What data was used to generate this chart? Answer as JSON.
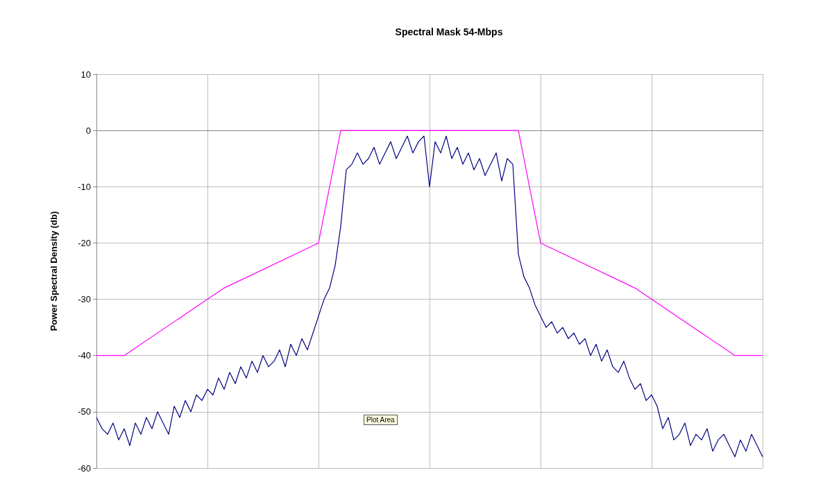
{
  "chart_data": {
    "type": "line",
    "title": "Spectral Mask 54-Mbps",
    "ylabel": "Power Spectral Density (db)",
    "annotations": [
      "Plot Area"
    ],
    "categories": [
      null,
      null,
      null,
      null,
      null,
      null,
      null,
      null,
      null,
      null,
      null,
      null,
      null,
      null,
      null,
      null,
      null,
      null,
      null,
      null,
      null,
      null,
      null,
      null,
      null,
      null,
      null,
      null,
      null,
      null,
      null,
      null,
      null,
      null,
      null,
      null,
      null,
      null,
      null,
      null,
      null,
      null,
      null,
      null,
      null,
      null,
      null,
      null,
      null,
      null,
      null,
      null,
      null,
      null,
      null,
      null,
      null,
      null,
      null,
      null,
      null,
      null,
      null,
      null,
      null,
      null,
      null,
      null,
      null,
      null,
      null,
      null,
      null,
      null,
      null,
      null,
      null,
      null,
      null,
      null,
      null,
      null,
      null,
      null,
      null,
      null,
      null,
      null,
      null,
      null,
      null,
      null,
      null,
      null,
      null,
      null,
      null,
      null,
      null,
      null,
      null,
      null,
      null,
      null,
      null,
      null,
      null,
      null,
      null,
      null,
      null,
      null,
      null,
      null,
      null,
      null,
      null,
      null,
      null,
      null,
      null
    ],
    "ylim": [
      -60,
      10
    ],
    "yticks": [
      -60,
      -50,
      -40,
      -30,
      -20,
      -10,
      0,
      10
    ],
    "tick_labels": "y",
    "grid": true,
    "line_style": "solid",
    "series": [
      {
        "color": "#000080",
        "values": [
          -51,
          -53,
          -54,
          -52,
          -55,
          -53,
          -56,
          -52,
          -54,
          -51,
          -53,
          -50,
          -52,
          -54,
          -49,
          -51,
          -48,
          -50,
          -47,
          -48,
          -46,
          -47,
          -44,
          -46,
          -43,
          -45,
          -42,
          -44,
          -41,
          -43,
          -40,
          -42,
          -41,
          -39,
          -42,
          -38,
          -40,
          -37,
          -39,
          -36,
          -33,
          -30,
          -28,
          -24,
          -17,
          -7,
          -6,
          -4,
          -6,
          -5,
          -3,
          -6,
          -4,
          -2,
          -5,
          -3,
          -1,
          -4,
          -2,
          -1,
          -10,
          -2,
          -4,
          -1,
          -5,
          -3,
          -6,
          -4,
          -7,
          -5,
          -8,
          -6,
          -4,
          -9,
          -5,
          -6,
          -22,
          -26,
          -28,
          -31,
          -33,
          -35,
          -34,
          -36,
          -35,
          -37,
          -36,
          -38,
          -37,
          -40,
          -38,
          -41,
          -39,
          -42,
          -43,
          -41,
          -44,
          -46,
          -45,
          -48,
          -47,
          -49,
          -53,
          -51,
          -55,
          -54,
          -52,
          -56,
          -54,
          -55,
          -53,
          -57,
          -55,
          -54,
          -56,
          -58,
          -55,
          -57,
          -54,
          -56,
          -58
        ]
      },
      {
        "color": "#ff00ff",
        "values": [
          -40,
          null,
          null,
          null,
          null,
          -40,
          null,
          null,
          null,
          null,
          null,
          null,
          null,
          null,
          null,
          null,
          null,
          null,
          null,
          null,
          null,
          null,
          null,
          -28,
          null,
          null,
          null,
          null,
          null,
          null,
          null,
          null,
          null,
          null,
          null,
          null,
          null,
          null,
          null,
          null,
          -20,
          null,
          null,
          null,
          0,
          null,
          null,
          null,
          null,
          null,
          null,
          null,
          null,
          null,
          null,
          null,
          null,
          null,
          null,
          null,
          null,
          null,
          null,
          null,
          null,
          null,
          null,
          null,
          null,
          null,
          null,
          null,
          null,
          null,
          null,
          null,
          0,
          null,
          null,
          null,
          -20,
          null,
          null,
          null,
          null,
          null,
          null,
          null,
          null,
          null,
          null,
          null,
          null,
          null,
          null,
          null,
          null,
          -28,
          null,
          null,
          null,
          null,
          null,
          null,
          null,
          null,
          null,
          null,
          null,
          null,
          null,
          null,
          null,
          null,
          null,
          -40,
          null,
          null,
          null,
          null,
          -40
        ]
      }
    ]
  }
}
